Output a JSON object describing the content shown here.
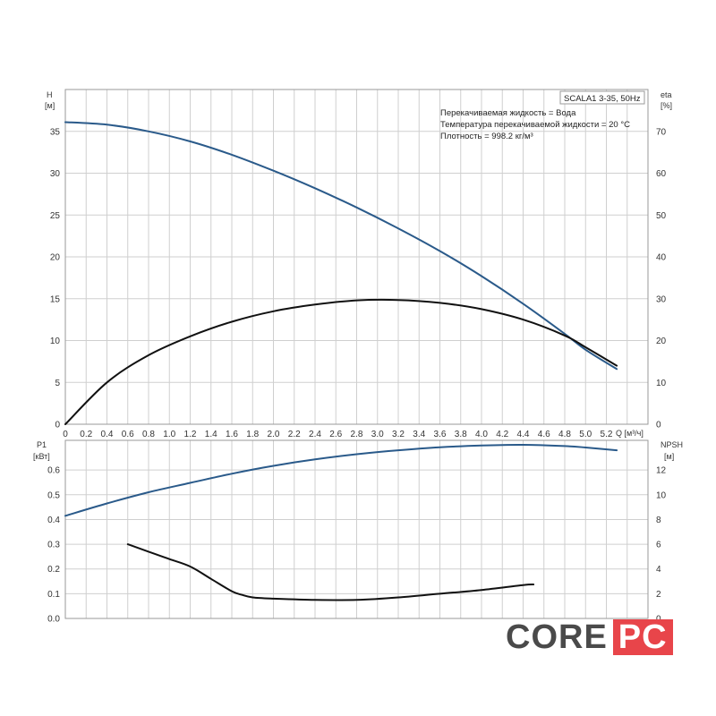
{
  "colors": {
    "blue": "#2a5a8a",
    "black": "#111111",
    "grid": "#cfcfcf",
    "frame": "#9a9a9a",
    "logo_gray": "#4a4a4a",
    "logo_red": "#e8454a"
  },
  "info": {
    "model": "SCALA1 3-35, 50Hz",
    "liquid": "Перекачиваемая жидкость = Вода",
    "temperature": "Температура перекачиваемой жидкости = 20 °C",
    "density": "Плотность = 998.2 кг/м³"
  },
  "logo": {
    "part1": "CORE",
    "part2": "PC"
  },
  "chart_data": [
    {
      "type": "line",
      "title": "",
      "xlabel": "Q [м³/ч]",
      "x_unit_label": "Q [м³/ч]",
      "xlim": [
        0,
        5.6
      ],
      "xticks": [
        "0",
        "0.2",
        "0.4",
        "0.6",
        "0.8",
        "1.0",
        "1.2",
        "1.4",
        "1.6",
        "1.8",
        "2.0",
        "2.2",
        "2.4",
        "2.6",
        "2.8",
        "3.0",
        "3.2",
        "3.4",
        "3.6",
        "3.8",
        "4.0",
        "4.2",
        "4.4",
        "4.6",
        "4.8",
        "5.0",
        "5.2"
      ],
      "y_left": {
        "label": "H",
        "unit": "[м]",
        "ylim": [
          0,
          40
        ],
        "ticks": [
          "0",
          "5",
          "10",
          "15",
          "20",
          "25",
          "30",
          "35"
        ]
      },
      "y_right": {
        "label": "eta",
        "unit": "[%]",
        "ylim": [
          0,
          80
        ],
        "ticks": [
          "0",
          "10",
          "20",
          "30",
          "40",
          "50",
          "60",
          "70"
        ]
      },
      "grid": true,
      "series": [
        {
          "axis": "left",
          "color": "#2a5a8a",
          "x": [
            0,
            0.4,
            0.8,
            1.2,
            1.6,
            2.0,
            2.4,
            2.8,
            3.2,
            3.6,
            4.0,
            4.4,
            4.8,
            5.0,
            5.3
          ],
          "y": [
            36.1,
            35.8,
            35.0,
            33.8,
            32.2,
            30.3,
            28.2,
            25.9,
            23.4,
            20.7,
            17.7,
            14.4,
            10.8,
            8.9,
            6.6
          ]
        },
        {
          "axis": "right",
          "color": "#111111",
          "x": [
            0,
            0.4,
            0.8,
            1.2,
            1.6,
            2.0,
            2.4,
            2.8,
            3.2,
            3.6,
            4.0,
            4.4,
            4.8,
            5.0,
            5.3
          ],
          "y": [
            0,
            10,
            16.5,
            21,
            24.5,
            27,
            28.6,
            29.6,
            29.7,
            29.0,
            27.5,
            25.0,
            21.2,
            18.4,
            14
          ]
        }
      ]
    },
    {
      "type": "line",
      "title": "",
      "xlim": [
        0,
        5.6
      ],
      "y_left": {
        "label": "P1",
        "unit": "[кВт]",
        "ylim": [
          0,
          0.72
        ],
        "ticks": [
          "0.0",
          "0.1",
          "0.2",
          "0.3",
          "0.4",
          "0.5",
          "0.6"
        ]
      },
      "y_right": {
        "label": "NPSH",
        "unit": "[м]",
        "ylim": [
          0,
          14.4
        ],
        "ticks": [
          "0",
          "2",
          "4",
          "6",
          "8",
          "10",
          "12"
        ]
      },
      "grid": true,
      "series": [
        {
          "axis": "left",
          "color": "#2a5a8a",
          "x": [
            0,
            0.4,
            0.8,
            1.2,
            1.6,
            2.0,
            2.4,
            2.8,
            3.2,
            3.6,
            4.0,
            4.4,
            4.8,
            5.0,
            5.3
          ],
          "y": [
            0.415,
            0.465,
            0.51,
            0.548,
            0.585,
            0.617,
            0.643,
            0.664,
            0.68,
            0.692,
            0.699,
            0.702,
            0.697,
            0.691,
            0.68
          ]
        },
        {
          "axis": "right",
          "color": "#111111",
          "x": [
            0.6,
            0.8,
            1.0,
            1.2,
            1.4,
            1.6,
            1.7,
            1.8,
            2.0,
            2.4,
            2.8,
            3.2,
            3.6,
            4.0,
            4.4,
            4.5
          ],
          "y": [
            6.0,
            5.4,
            4.8,
            4.2,
            3.2,
            2.2,
            1.9,
            1.7,
            1.6,
            1.5,
            1.5,
            1.7,
            2.0,
            2.3,
            2.7,
            2.75
          ]
        }
      ]
    }
  ]
}
